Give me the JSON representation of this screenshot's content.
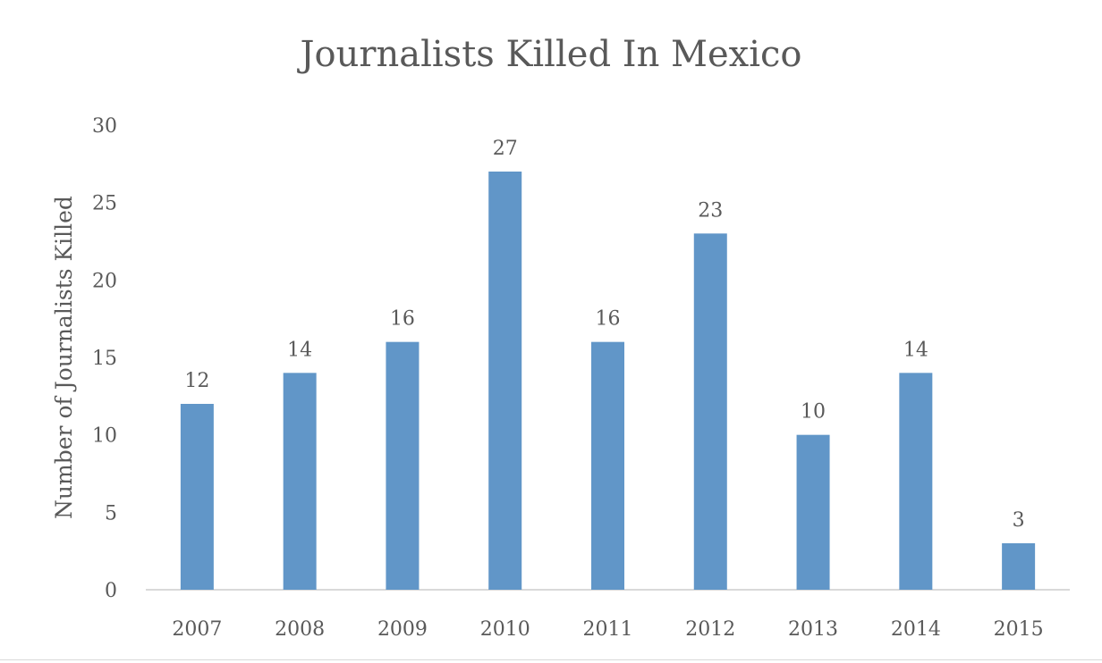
{
  "chart_data": {
    "type": "bar",
    "title": "Journalists Killed In Mexico",
    "xlabel": "",
    "ylabel": "Number of Journalists Killed",
    "categories": [
      "2007",
      "2008",
      "2009",
      "2010",
      "2011",
      "2012",
      "2013",
      "2014",
      "2015"
    ],
    "values": [
      12,
      14,
      16,
      27,
      16,
      23,
      10,
      14,
      3
    ],
    "ylim": [
      0,
      30
    ],
    "yticks": [
      0,
      5,
      10,
      15,
      20,
      25,
      30
    ],
    "data_labels": true,
    "grid": false,
    "legend": "none",
    "bar_color": "#6196c8",
    "axis_color": "#d9d9d9",
    "text_color": "#595959"
  }
}
